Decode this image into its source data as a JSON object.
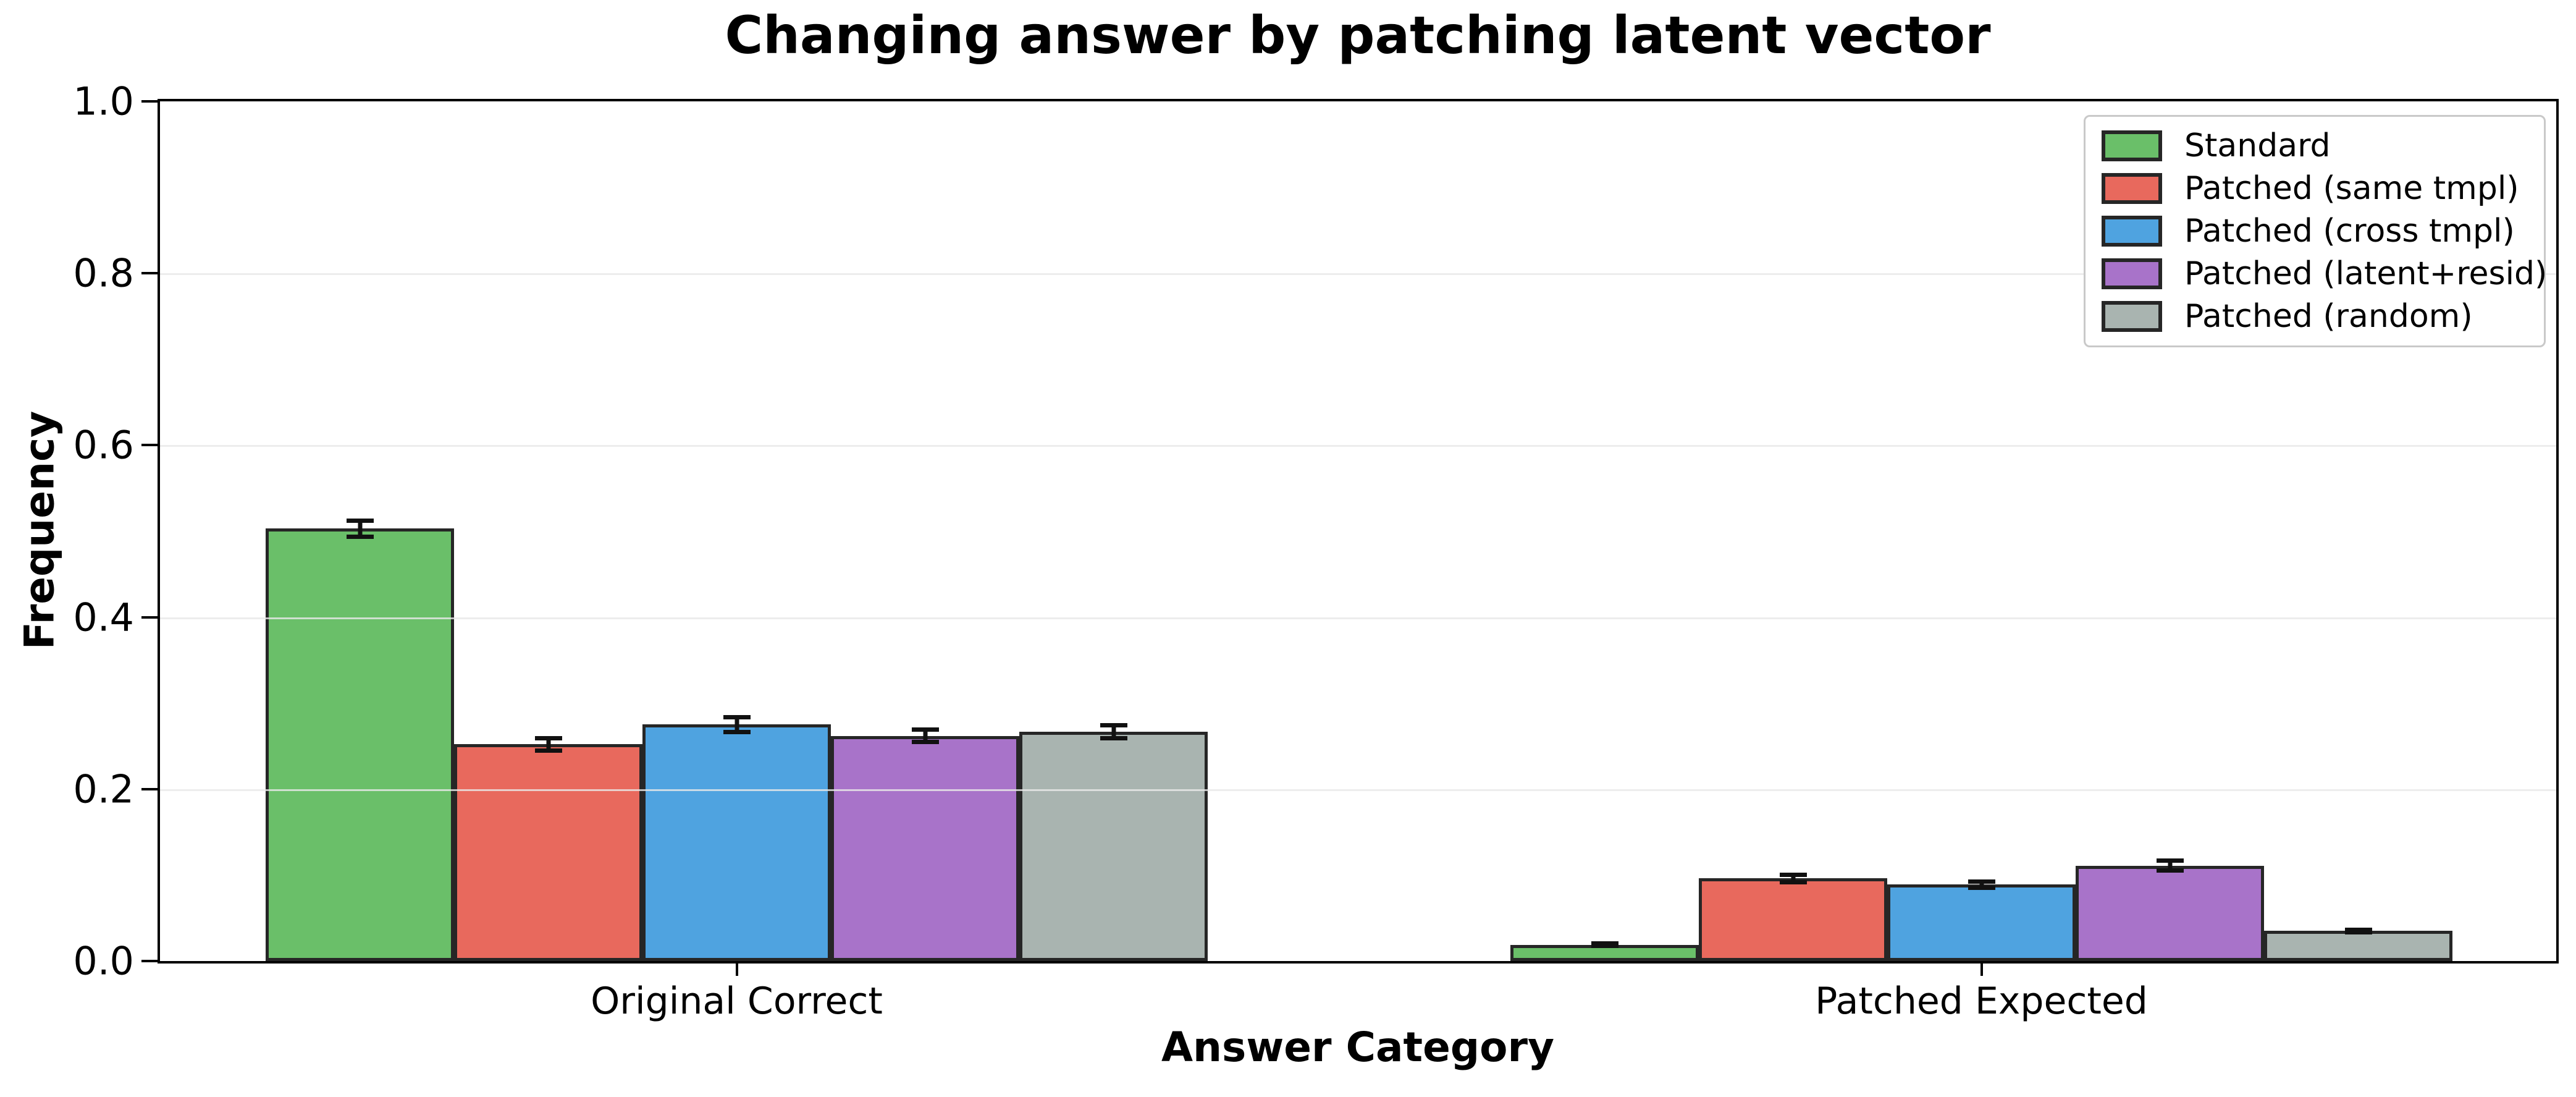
{
  "chart_data": {
    "type": "bar",
    "title": "Changing answer by patching latent vector",
    "xlabel": "Answer Category",
    "ylabel": "Frequency",
    "categories": [
      "Original Correct",
      "Patched Expected"
    ],
    "ylim": [
      0,
      1.0
    ],
    "yticks": [
      0.0,
      0.2,
      0.4,
      0.6,
      0.8,
      1.0
    ],
    "grid": "horizontal-light-gray",
    "legend_position": "upper-right",
    "bar_edge_color": "#262626",
    "error_bar_color": "#111111",
    "series": [
      {
        "name": "Standard",
        "color": "#6abf69",
        "values": [
          0.503,
          0.019
        ],
        "errors": [
          0.012,
          0.004
        ]
      },
      {
        "name": "Patched (same tmpl)",
        "color": "#e8695d",
        "values": [
          0.252,
          0.096
        ],
        "errors": [
          0.01,
          0.007
        ]
      },
      {
        "name": "Patched (cross tmpl)",
        "color": "#4fa3e0",
        "values": [
          0.275,
          0.089
        ],
        "errors": [
          0.011,
          0.006
        ]
      },
      {
        "name": "Patched (latent+resid)",
        "color": "#a873c9",
        "values": [
          0.262,
          0.111
        ],
        "errors": [
          0.01,
          0.008
        ]
      },
      {
        "name": "Patched (random)",
        "color": "#a9b4b0",
        "values": [
          0.267,
          0.035
        ],
        "errors": [
          0.01,
          0.004
        ]
      }
    ]
  }
}
